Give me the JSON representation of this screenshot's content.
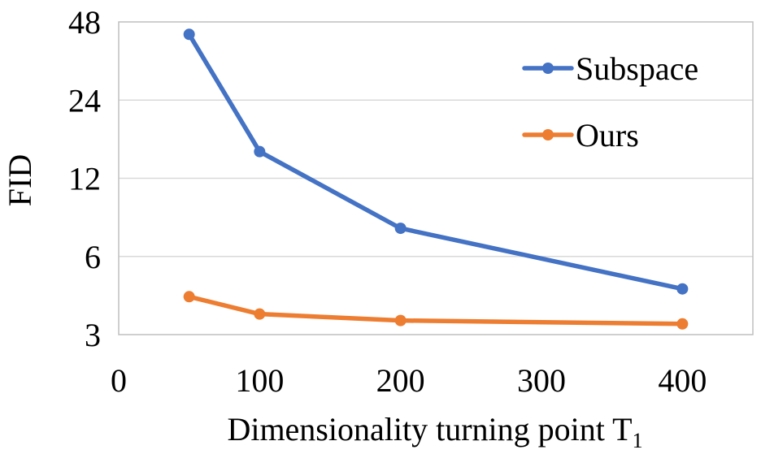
{
  "chart_data": {
    "type": "line",
    "title": "",
    "xlabel": "Dimensionality turning point T",
    "xlabel_subscript": "1",
    "ylabel": "FID",
    "y_scale": "log",
    "xlim": [
      0,
      450
    ],
    "ylim": [
      3,
      48
    ],
    "x_ticks": [
      0,
      100,
      200,
      300,
      400
    ],
    "x_tick_labels": [
      "0",
      "100",
      "200",
      "300",
      "400"
    ],
    "y_ticks": [
      3,
      6,
      12,
      24,
      48
    ],
    "y_tick_labels": [
      "3",
      "6",
      "12",
      "24",
      "48"
    ],
    "grid": "horizontal",
    "legend_position": "top-right",
    "x": [
      50,
      100,
      200,
      400
    ],
    "series": [
      {
        "name": "Subspace",
        "color": "#4472C4",
        "values": [
          43,
          15.2,
          7.7,
          4.5
        ]
      },
      {
        "name": "Ours",
        "color": "#ED7D31",
        "values": [
          4.2,
          3.6,
          3.4,
          3.3
        ]
      }
    ]
  }
}
